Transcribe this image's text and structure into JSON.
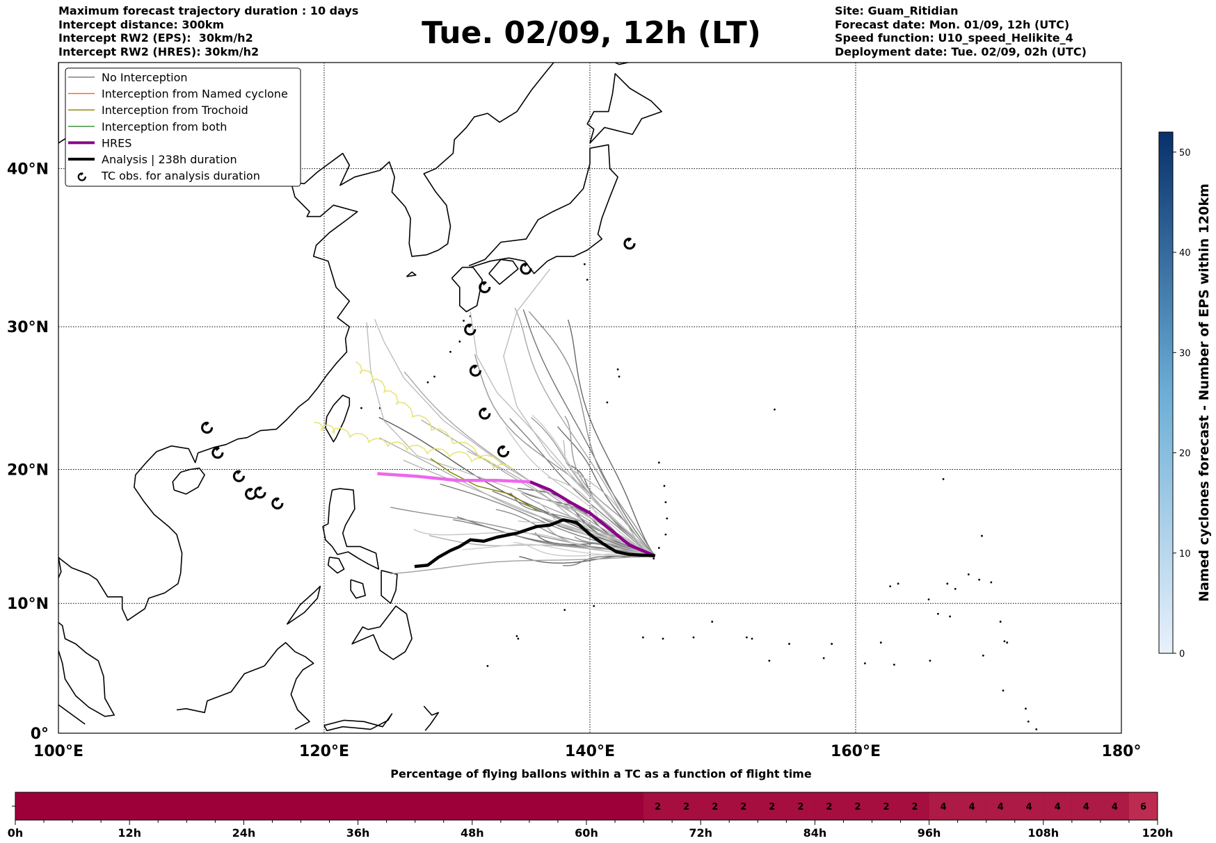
{
  "header": {
    "left_lines": [
      "Maximum forecast trajectory duration : 10 days",
      "Intercept distance: 300km",
      "Intercept RW2 (EPS):  30km/h2",
      "Intercept RW2 (HRES): 30km/h2"
    ],
    "right_lines": [
      "Site: Guam_Ritidian",
      "Forecast date: Mon. 01/09, 12h (UTC)",
      "Speed function: U10_speed_Helikite_4",
      "Deployment date: Tue. 02/09, 02h (UTC)"
    ],
    "title": "Tue. 02/09, 12h (LT)"
  },
  "map": {
    "projection": "mercator",
    "lon_range": [
      100,
      180
    ],
    "lat_range": [
      0,
      46
    ],
    "lon_ticks": [
      {
        "value": 100,
        "label": "100°E"
      },
      {
        "value": 120,
        "label": "120°E"
      },
      {
        "value": 140,
        "label": "140°E"
      },
      {
        "value": 160,
        "label": "160°E"
      },
      {
        "value": 180,
        "label": "180°"
      }
    ],
    "lat_ticks": [
      {
        "value": 0,
        "label": "0°"
      },
      {
        "value": 10,
        "label": "10°N"
      },
      {
        "value": 20,
        "label": "20°N"
      },
      {
        "value": 30,
        "label": "30°N"
      },
      {
        "value": 40,
        "label": "40°N"
      }
    ],
    "grid": true,
    "site": {
      "name": "Guam_Ritidian",
      "lon": 144.9,
      "lat": 13.6
    },
    "legend_position": "top-left",
    "legend": [
      {
        "label": "No Interception",
        "color": "#808080",
        "kind": "line-thin"
      },
      {
        "label": "Interception from Named cyclone",
        "color": "#ff5a1f",
        "kind": "line-thin"
      },
      {
        "label": "Interception from Trochoid",
        "color": "#808000",
        "kind": "line-thin"
      },
      {
        "label": "Interception from both",
        "color": "#2e8b2e",
        "kind": "line-thin"
      },
      {
        "label": "HRES",
        "color": "#8b008b",
        "kind": "line-thick"
      },
      {
        "label": "Analysis | 238h duration",
        "color": "#000000",
        "kind": "line-thick"
      },
      {
        "label": "TC obs. for analysis duration",
        "color": "#000000",
        "kind": "tc-symbol"
      }
    ],
    "hres_track": [
      [
        124.0,
        19.7
      ],
      [
        127.0,
        19.5
      ],
      [
        130.0,
        19.2
      ],
      [
        133.0,
        19.2
      ],
      [
        135.5,
        19.1
      ],
      [
        137.0,
        18.5
      ],
      [
        138.5,
        17.6
      ],
      [
        140.0,
        16.8
      ],
      [
        141.5,
        15.6
      ],
      [
        143.0,
        14.4
      ],
      [
        144.9,
        13.6
      ]
    ],
    "analysis_track": [
      [
        126.8,
        12.8
      ],
      [
        127.8,
        12.9
      ],
      [
        128.6,
        13.5
      ],
      [
        129.5,
        14.0
      ],
      [
        130.2,
        14.3
      ],
      [
        131.0,
        14.8
      ],
      [
        132.0,
        14.7
      ],
      [
        133.0,
        15.0
      ],
      [
        134.5,
        15.3
      ],
      [
        136.0,
        15.8
      ],
      [
        137.0,
        15.9
      ],
      [
        138.0,
        16.3
      ],
      [
        139.0,
        16.1
      ],
      [
        140.0,
        15.2
      ],
      [
        141.0,
        14.5
      ],
      [
        142.0,
        13.9
      ],
      [
        143.0,
        13.7
      ],
      [
        144.9,
        13.6
      ]
    ],
    "tc_obs": [
      [
        111.2,
        23.0
      ],
      [
        112.0,
        21.2
      ],
      [
        113.6,
        19.5
      ],
      [
        114.5,
        18.2
      ],
      [
        115.2,
        18.3
      ],
      [
        116.5,
        17.5
      ],
      [
        131.0,
        29.8
      ],
      [
        131.4,
        27.0
      ],
      [
        132.1,
        24.0
      ],
      [
        133.5,
        21.3
      ],
      [
        132.1,
        32.6
      ],
      [
        135.2,
        33.8
      ],
      [
        143.0,
        35.4
      ]
    ],
    "colorbar": {
      "label": "Named cyclones forecast - Number of EPS within 120km",
      "min": 0,
      "max": 52,
      "ticks": [
        0,
        10,
        20,
        30,
        40,
        50
      ],
      "color_low": "#e9f1fb",
      "color_high": "#08306b"
    }
  },
  "bottom_bar": {
    "title": "Percentage of flying ballons within a TC as a function of flight time",
    "time_range_h": [
      0,
      120
    ],
    "time_ticks": [
      {
        "value": 0,
        "label": "0h"
      },
      {
        "value": 12,
        "label": "12h"
      },
      {
        "value": 24,
        "label": "24h"
      },
      {
        "value": 36,
        "label": "36h"
      },
      {
        "value": 48,
        "label": "48h"
      },
      {
        "value": 60,
        "label": "60h"
      },
      {
        "value": 72,
        "label": "72h"
      },
      {
        "value": 84,
        "label": "84h"
      },
      {
        "value": 96,
        "label": "96h"
      },
      {
        "value": 108,
        "label": "108h"
      },
      {
        "value": 120,
        "label": "120h"
      }
    ],
    "cells": [
      {
        "start": 66,
        "end": 69,
        "value": "2"
      },
      {
        "start": 69,
        "end": 72,
        "value": "2"
      },
      {
        "start": 72,
        "end": 75,
        "value": "2"
      },
      {
        "start": 75,
        "end": 78,
        "value": "2"
      },
      {
        "start": 78,
        "end": 81,
        "value": "2"
      },
      {
        "start": 81,
        "end": 84,
        "value": "2"
      },
      {
        "start": 84,
        "end": 87,
        "value": "2"
      },
      {
        "start": 87,
        "end": 90,
        "value": "2"
      },
      {
        "start": 90,
        "end": 93,
        "value": "2"
      },
      {
        "start": 93,
        "end": 96,
        "value": "2"
      },
      {
        "start": 96,
        "end": 99,
        "value": "4"
      },
      {
        "start": 99,
        "end": 102,
        "value": "4"
      },
      {
        "start": 102,
        "end": 105,
        "value": "4"
      },
      {
        "start": 105,
        "end": 108,
        "value": "4"
      },
      {
        "start": 108,
        "end": 111,
        "value": "4"
      },
      {
        "start": 111,
        "end": 114,
        "value": "4"
      },
      {
        "start": 114,
        "end": 117,
        "value": "4"
      },
      {
        "start": 117,
        "end": 120,
        "value": "6"
      }
    ],
    "base_color": "#9d0039",
    "value_colors": {
      "2": "#a60e3f",
      "4": "#ad1a45",
      "6": "#bb2c50"
    }
  }
}
